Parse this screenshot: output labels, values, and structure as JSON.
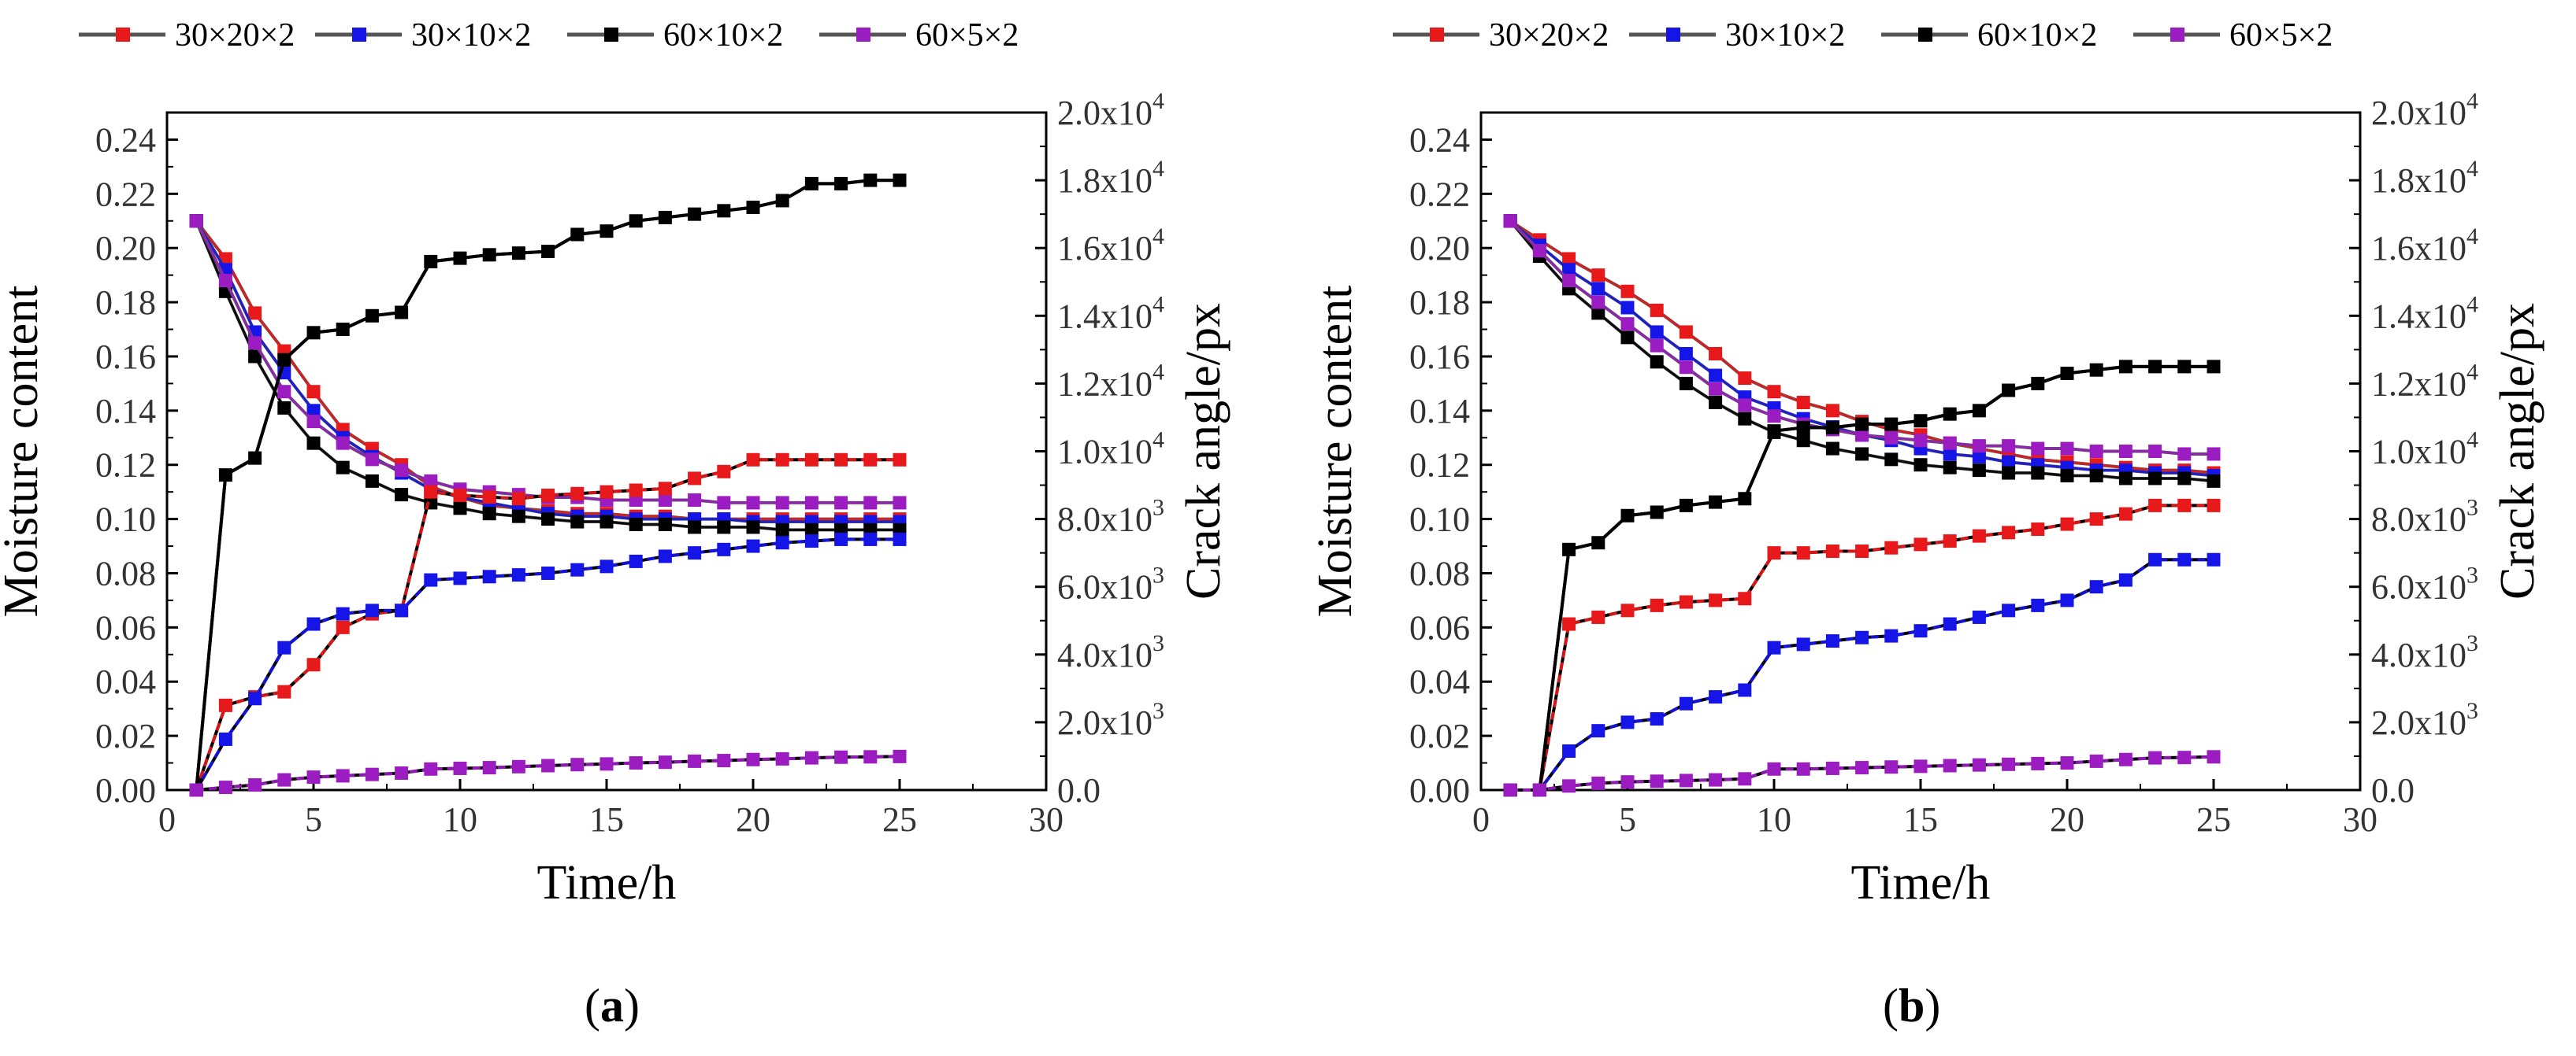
{
  "chart_data": [
    {
      "type": "line",
      "panel_label": "a",
      "xlabel": "Time/h",
      "ylabel_left": "Moisture content",
      "ylabel_right": "Crack angle/px",
      "xlim": [
        0,
        30
      ],
      "ylim_left": [
        0,
        0.25
      ],
      "ylim_right": [
        0,
        20000
      ],
      "x_ticks": [
        "0",
        "5",
        "10",
        "15",
        "20",
        "25",
        "30"
      ],
      "y_left_ticks": [
        "0.00",
        "0.02",
        "0.04",
        "0.06",
        "0.08",
        "0.10",
        "0.12",
        "0.14",
        "0.16",
        "0.18",
        "0.20",
        "0.22",
        "0.24"
      ],
      "y_right_ticks": [
        {
          "mant": "0.0",
          "exp": ""
        },
        {
          "mant": "2.0x10",
          "exp": "3"
        },
        {
          "mant": "4.0x10",
          "exp": "3"
        },
        {
          "mant": "6.0x10",
          "exp": "3"
        },
        {
          "mant": "8.0x10",
          "exp": "3"
        },
        {
          "mant": "1.0x10",
          "exp": "4"
        },
        {
          "mant": "1.2x10",
          "exp": "4"
        },
        {
          "mant": "1.4x10",
          "exp": "4"
        },
        {
          "mant": "1.6x10",
          "exp": "4"
        },
        {
          "mant": "1.8x10",
          "exp": "4"
        },
        {
          "mant": "2.0x10",
          "exp": "4"
        }
      ],
      "x": [
        1,
        2,
        3,
        4,
        5,
        6,
        7,
        8,
        9,
        10,
        11,
        12,
        13,
        14,
        15,
        16,
        17,
        18,
        19,
        20,
        21,
        22,
        23,
        24,
        25
      ],
      "legend": [
        "30×20×2",
        "30×10×2",
        "60×10×2",
        "60×5×2"
      ],
      "series": [
        {
          "name": "30×20×2",
          "color": "#e8191b",
          "axis": "left",
          "values": [
            0.21,
            0.196,
            0.176,
            0.162,
            0.147,
            0.133,
            0.126,
            0.12,
            0.112,
            0.108,
            0.105,
            0.104,
            0.103,
            0.102,
            0.102,
            0.101,
            0.101,
            0.1,
            0.1,
            0.1,
            0.1,
            0.1,
            0.1,
            0.1,
            0.1
          ]
        },
        {
          "name": "30×10×2",
          "color": "#1515e8",
          "axis": "left",
          "values": [
            0.21,
            0.192,
            0.169,
            0.154,
            0.14,
            0.13,
            0.123,
            0.117,
            0.111,
            0.108,
            0.106,
            0.104,
            0.102,
            0.101,
            0.101,
            0.1,
            0.1,
            0.1,
            0.1,
            0.099,
            0.099,
            0.099,
            0.099,
            0.099,
            0.099
          ]
        },
        {
          "name": "60×10×2",
          "color": "#000000",
          "axis": "left",
          "values": [
            0.21,
            0.184,
            0.16,
            0.141,
            0.128,
            0.119,
            0.114,
            0.109,
            0.106,
            0.104,
            0.102,
            0.101,
            0.1,
            0.099,
            0.099,
            0.098,
            0.098,
            0.097,
            0.097,
            0.097,
            0.096,
            0.096,
            0.096,
            0.096,
            0.096
          ]
        },
        {
          "name": "60×5×2",
          "color": "#9b1dc1",
          "axis": "left",
          "values": [
            0.21,
            0.188,
            0.165,
            0.147,
            0.136,
            0.128,
            0.122,
            0.118,
            0.114,
            0.111,
            0.11,
            0.109,
            0.108,
            0.108,
            0.107,
            0.107,
            0.107,
            0.107,
            0.106,
            0.106,
            0.106,
            0.106,
            0.106,
            0.106,
            0.106
          ]
        },
        {
          "name": "30×20×2",
          "color": "#e8191b",
          "axis": "right",
          "values": [
            0,
            2500,
            2750,
            2900,
            3700,
            4800,
            5200,
            5300,
            8800,
            8700,
            8650,
            8600,
            8700,
            8750,
            8800,
            8850,
            8900,
            9200,
            9400,
            9750,
            9750,
            9750,
            9750,
            9750,
            9750
          ]
        },
        {
          "name": "30×10×2",
          "color": "#1515e8",
          "axis": "right",
          "values": [
            0,
            1500,
            2700,
            4200,
            4900,
            5200,
            5300,
            5300,
            6200,
            6250,
            6300,
            6350,
            6400,
            6500,
            6600,
            6750,
            6900,
            7000,
            7100,
            7200,
            7300,
            7350,
            7400,
            7400,
            7400
          ]
        },
        {
          "name": "60×10×2",
          "color": "#000000",
          "axis": "right",
          "values": [
            0,
            9300,
            9800,
            12700,
            13500,
            13600,
            14000,
            14100,
            15600,
            15700,
            15800,
            15850,
            15900,
            16400,
            16500,
            16800,
            16900,
            17000,
            17100,
            17200,
            17400,
            17900,
            17900,
            18000,
            18000
          ]
        },
        {
          "name": "60×5×2",
          "color": "#9b1dc1",
          "axis": "right",
          "values": [
            0,
            80,
            150,
            300,
            380,
            420,
            460,
            500,
            620,
            640,
            660,
            690,
            720,
            750,
            770,
            800,
            820,
            850,
            870,
            900,
            920,
            950,
            970,
            980,
            990
          ]
        }
      ]
    },
    {
      "type": "line",
      "panel_label": "b",
      "xlabel": "Time/h",
      "ylabel_left": "Moisture content",
      "ylabel_right": "Crack angle/px",
      "xlim": [
        0,
        30
      ],
      "ylim_left": [
        0,
        0.25
      ],
      "ylim_right": [
        0,
        20000
      ],
      "x_ticks": [
        "0",
        "5",
        "10",
        "15",
        "20",
        "25",
        "30"
      ],
      "y_left_ticks": [
        "0.00",
        "0.02",
        "0.04",
        "0.06",
        "0.08",
        "0.10",
        "0.12",
        "0.14",
        "0.16",
        "0.18",
        "0.20",
        "0.22",
        "0.24"
      ],
      "y_right_ticks": [
        {
          "mant": "0.0",
          "exp": ""
        },
        {
          "mant": "2.0x10",
          "exp": "3"
        },
        {
          "mant": "4.0x10",
          "exp": "3"
        },
        {
          "mant": "6.0x10",
          "exp": "3"
        },
        {
          "mant": "8.0x10",
          "exp": "3"
        },
        {
          "mant": "1.0x10",
          "exp": "4"
        },
        {
          "mant": "1.2x10",
          "exp": "4"
        },
        {
          "mant": "1.4x10",
          "exp": "4"
        },
        {
          "mant": "1.6x10",
          "exp": "4"
        },
        {
          "mant": "1.8x10",
          "exp": "4"
        },
        {
          "mant": "2.0x10",
          "exp": "4"
        }
      ],
      "x": [
        1,
        2,
        3,
        4,
        5,
        6,
        7,
        8,
        9,
        10,
        11,
        12,
        13,
        14,
        15,
        16,
        17,
        18,
        19,
        20,
        21,
        22,
        23,
        24,
        25
      ],
      "legend": [
        "30×20×2",
        "30×10×2",
        "60×10×2",
        "60×5×2"
      ],
      "series": [
        {
          "name": "30×20×2",
          "color": "#e8191b",
          "axis": "left",
          "values": [
            0.21,
            0.203,
            0.196,
            0.19,
            0.184,
            0.177,
            0.169,
            0.161,
            0.152,
            0.147,
            0.143,
            0.14,
            0.136,
            0.133,
            0.131,
            0.128,
            0.126,
            0.124,
            0.122,
            0.121,
            0.12,
            0.119,
            0.118,
            0.118,
            0.117
          ]
        },
        {
          "name": "30×10×2",
          "color": "#1515e8",
          "axis": "left",
          "values": [
            0.21,
            0.201,
            0.192,
            0.185,
            0.178,
            0.169,
            0.161,
            0.153,
            0.145,
            0.141,
            0.137,
            0.134,
            0.131,
            0.129,
            0.126,
            0.124,
            0.123,
            0.121,
            0.12,
            0.119,
            0.118,
            0.118,
            0.117,
            0.117,
            0.116
          ]
        },
        {
          "name": "60×10×2",
          "color": "#000000",
          "axis": "left",
          "values": [
            0.21,
            0.197,
            0.185,
            0.176,
            0.167,
            0.158,
            0.15,
            0.143,
            0.137,
            0.132,
            0.129,
            0.126,
            0.124,
            0.122,
            0.12,
            0.119,
            0.118,
            0.117,
            0.117,
            0.116,
            0.116,
            0.115,
            0.115,
            0.115,
            0.114
          ]
        },
        {
          "name": "60×5×2",
          "color": "#9b1dc1",
          "axis": "left",
          "values": [
            0.21,
            0.199,
            0.188,
            0.18,
            0.172,
            0.164,
            0.156,
            0.148,
            0.142,
            0.138,
            0.135,
            0.133,
            0.131,
            0.13,
            0.129,
            0.128,
            0.127,
            0.127,
            0.126,
            0.126,
            0.125,
            0.125,
            0.125,
            0.124,
            0.124
          ]
        },
        {
          "name": "30×20×2",
          "color": "#e8191b",
          "axis": "right",
          "values": [
            0,
            0,
            4900,
            5100,
            5300,
            5450,
            5550,
            5600,
            5650,
            7000,
            7000,
            7050,
            7050,
            7150,
            7250,
            7350,
            7500,
            7600,
            7700,
            7850,
            8000,
            8150,
            8400,
            8400,
            8400
          ]
        },
        {
          "name": "30×10×2",
          "color": "#1515e8",
          "axis": "right",
          "values": [
            0,
            0,
            1150,
            1750,
            2000,
            2100,
            2550,
            2750,
            2950,
            4200,
            4300,
            4400,
            4500,
            4550,
            4700,
            4900,
            5100,
            5300,
            5450,
            5600,
            6000,
            6200,
            6800,
            6800,
            6800
          ]
        },
        {
          "name": "60×10×2",
          "color": "#000000",
          "axis": "right",
          "values": [
            0,
            0,
            7100,
            7300,
            8100,
            8200,
            8400,
            8500,
            8600,
            10600,
            10700,
            10700,
            10800,
            10800,
            10900,
            11100,
            11200,
            11800,
            12000,
            12300,
            12400,
            12500,
            12500,
            12500,
            12500
          ]
        },
        {
          "name": "60×5×2",
          "color": "#9b1dc1",
          "axis": "right",
          "values": [
            0,
            0,
            120,
            200,
            240,
            260,
            280,
            300,
            330,
            620,
            620,
            640,
            660,
            680,
            700,
            720,
            740,
            760,
            780,
            800,
            850,
            900,
            950,
            960,
            980
          ]
        }
      ]
    }
  ]
}
